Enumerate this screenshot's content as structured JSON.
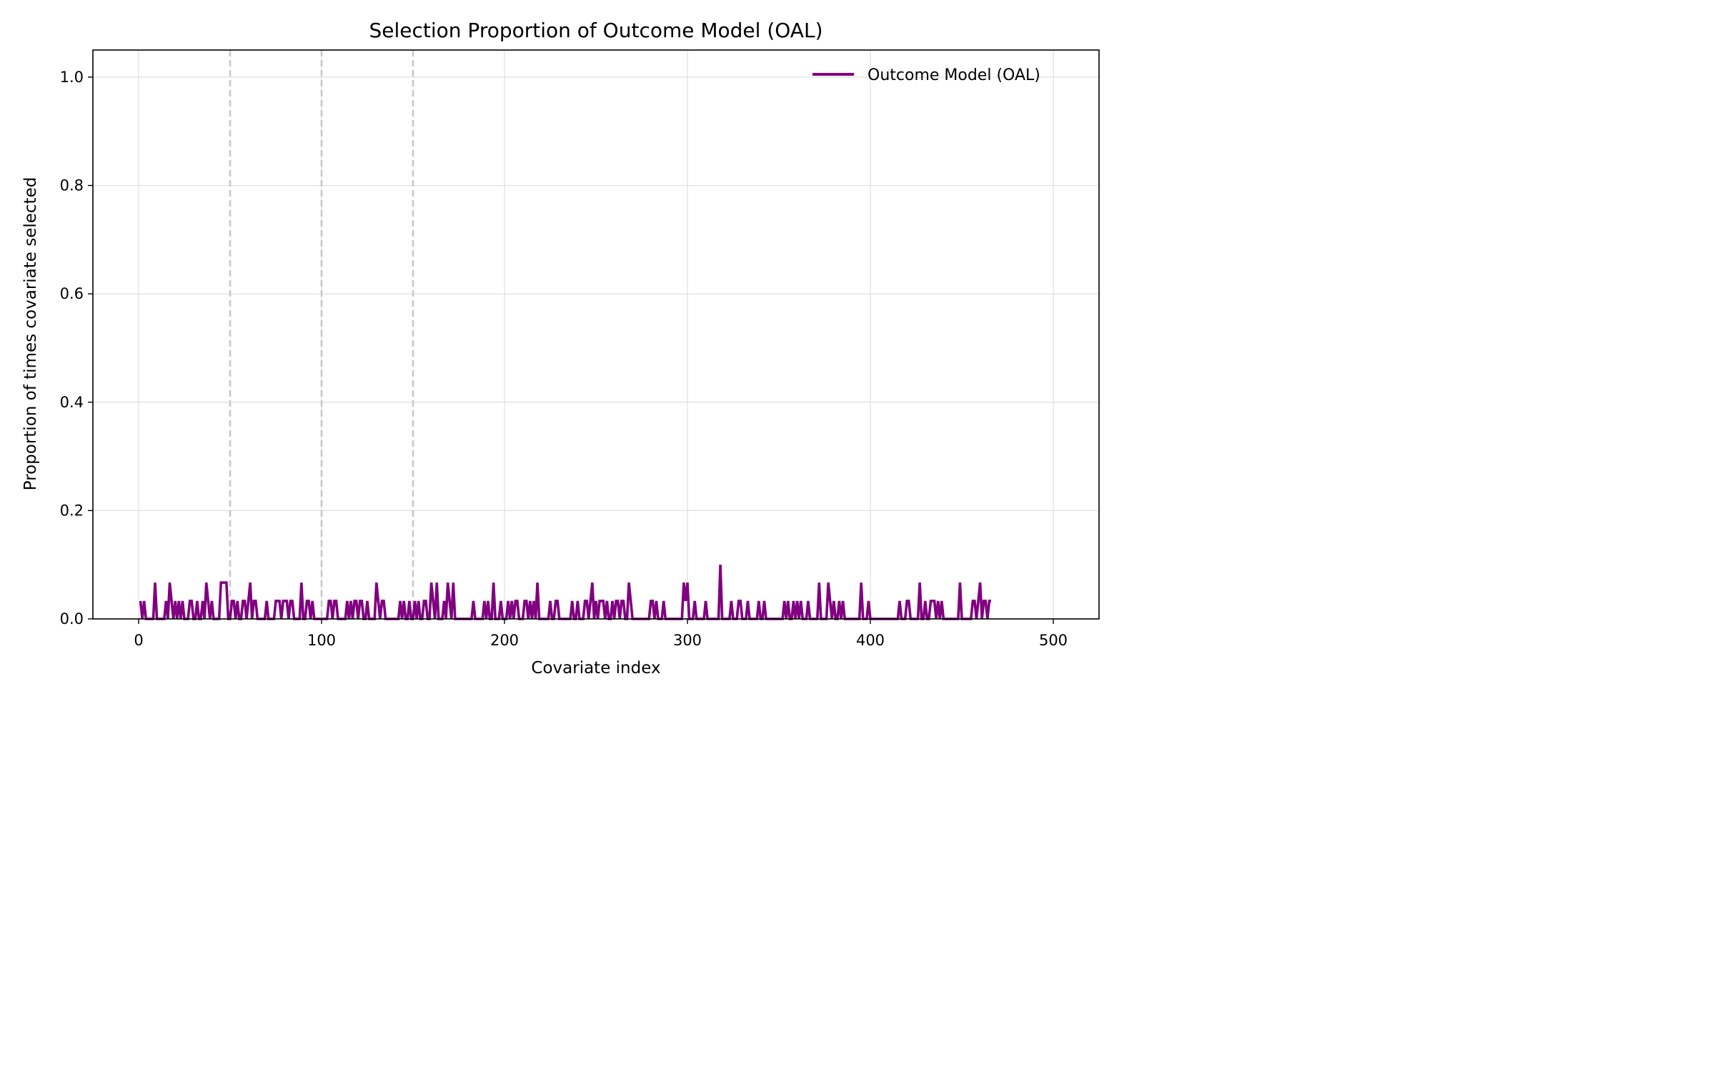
{
  "chart_data": {
    "type": "line",
    "title": "Selection Proportion of Outcome Model (OAL)",
    "xlabel": "Covariate index",
    "ylabel": "Proportion of times covariate selected",
    "xlim": [
      -25,
      525
    ],
    "ylim": [
      0,
      1.05
    ],
    "xticks": [
      0,
      100,
      200,
      300,
      400,
      500
    ],
    "xtick_labels": [
      "0",
      "100",
      "200",
      "300",
      "400",
      "500"
    ],
    "yticks": [
      0.0,
      0.2,
      0.4,
      0.6,
      0.8,
      1.0
    ],
    "ytick_labels": [
      "0.0",
      "0.2",
      "0.4",
      "0.6",
      "0.8",
      "1.0"
    ],
    "grid": true,
    "legend_position": "top-right",
    "reference_lines": [
      50,
      100,
      150
    ],
    "reference_line_color": "#c8c8c8",
    "series": [
      {
        "name": "Outcome Model (OAL)",
        "color": "#800080",
        "x_start": 1,
        "x_step": 1,
        "values": [
          0.033,
          0,
          0.033,
          0,
          0,
          0,
          0,
          0,
          0.067,
          0,
          0,
          0,
          0,
          0,
          0.033,
          0,
          0.067,
          0.033,
          0,
          0.033,
          0,
          0.033,
          0,
          0.033,
          0,
          0,
          0,
          0.033,
          0.033,
          0,
          0,
          0.033,
          0,
          0,
          0.033,
          0,
          0.067,
          0.033,
          0,
          0.033,
          0,
          0,
          0,
          0,
          0.067,
          0.067,
          0.067,
          0.067,
          0,
          0,
          0.033,
          0.033,
          0,
          0.033,
          0,
          0,
          0.033,
          0.033,
          0,
          0.033,
          0.067,
          0,
          0.033,
          0.033,
          0,
          0,
          0,
          0,
          0,
          0.033,
          0,
          0,
          0,
          0,
          0.033,
          0.033,
          0.033,
          0,
          0.033,
          0.033,
          0.033,
          0,
          0.033,
          0.033,
          0,
          0,
          0,
          0,
          0.067,
          0,
          0,
          0.033,
          0.033,
          0,
          0.033,
          0,
          0,
          0,
          0,
          0,
          0,
          0,
          0,
          0.033,
          0.033,
          0,
          0.033,
          0.033,
          0,
          0,
          0,
          0,
          0,
          0.033,
          0,
          0.033,
          0,
          0.033,
          0.033,
          0,
          0.033,
          0.033,
          0,
          0,
          0.033,
          0,
          0,
          0,
          0,
          0.067,
          0.033,
          0,
          0.033,
          0.033,
          0,
          0,
          0,
          0,
          0,
          0,
          0,
          0,
          0.033,
          0,
          0.033,
          0,
          0,
          0.033,
          0,
          0,
          0.033,
          0,
          0.033,
          0,
          0,
          0.033,
          0.033,
          0,
          0,
          0.067,
          0.033,
          0,
          0.067,
          0,
          0,
          0,
          0.033,
          0,
          0.067,
          0.033,
          0,
          0.067,
          0,
          0,
          0,
          0,
          0,
          0,
          0,
          0,
          0,
          0,
          0.033,
          0,
          0,
          0,
          0,
          0,
          0.033,
          0,
          0.033,
          0,
          0,
          0.067,
          0,
          0,
          0,
          0.033,
          0,
          0,
          0,
          0.033,
          0,
          0.033,
          0,
          0.033,
          0.033,
          0,
          0,
          0,
          0.033,
          0.033,
          0,
          0.033,
          0,
          0.033,
          0,
          0.067,
          0,
          0,
          0,
          0,
          0,
          0,
          0.033,
          0,
          0,
          0.033,
          0.033,
          0,
          0,
          0,
          0,
          0,
          0,
          0,
          0.033,
          0,
          0,
          0.033,
          0,
          0,
          0,
          0.033,
          0.033,
          0,
          0.033,
          0.067,
          0,
          0.033,
          0,
          0.033,
          0.033,
          0.033,
          0,
          0.033,
          0,
          0,
          0.033,
          0,
          0.033,
          0.033,
          0,
          0.033,
          0.033,
          0,
          0,
          0.067,
          0.033,
          0,
          0,
          0,
          0,
          0,
          0,
          0,
          0,
          0,
          0,
          0.033,
          0.033,
          0,
          0.033,
          0,
          0,
          0,
          0.033,
          0,
          0,
          0,
          0,
          0,
          0,
          0,
          0,
          0,
          0,
          0.067,
          0.033,
          0.067,
          0,
          0,
          0,
          0.033,
          0,
          0,
          0,
          0,
          0,
          0.033,
          0,
          0,
          0,
          0,
          0,
          0,
          0,
          0.1,
          0,
          0,
          0,
          0,
          0,
          0.033,
          0,
          0,
          0,
          0.033,
          0.033,
          0,
          0,
          0,
          0.033,
          0,
          0,
          0,
          0,
          0,
          0.033,
          0,
          0,
          0.033,
          0,
          0,
          0,
          0,
          0,
          0,
          0,
          0,
          0,
          0,
          0.033,
          0,
          0.033,
          0,
          0,
          0.033,
          0,
          0.033,
          0,
          0.033,
          0,
          0,
          0,
          0.033,
          0,
          0,
          0,
          0,
          0,
          0.067,
          0,
          0,
          0,
          0,
          0.067,
          0.033,
          0,
          0.033,
          0,
          0,
          0.033,
          0,
          0.033,
          0,
          0,
          0,
          0,
          0,
          0,
          0,
          0,
          0,
          0.067,
          0,
          0,
          0,
          0.033,
          0,
          0,
          0,
          0,
          0,
          0,
          0,
          0,
          0,
          0,
          0,
          0,
          0,
          0,
          0,
          0,
          0.033,
          0,
          0,
          0,
          0.033,
          0.033,
          0,
          0,
          0,
          0,
          0,
          0.067,
          0,
          0,
          0.033,
          0,
          0,
          0.033,
          0.033,
          0.033,
          0,
          0.033,
          0,
          0.033,
          0,
          0,
          0,
          0,
          0,
          0,
          0,
          0,
          0,
          0.067,
          0,
          0,
          0,
          0,
          0,
          0,
          0.033,
          0.033,
          0,
          0.033,
          0.067,
          0,
          0.033,
          0.033,
          0,
          0.033,
          0.033
        ]
      }
    ]
  }
}
